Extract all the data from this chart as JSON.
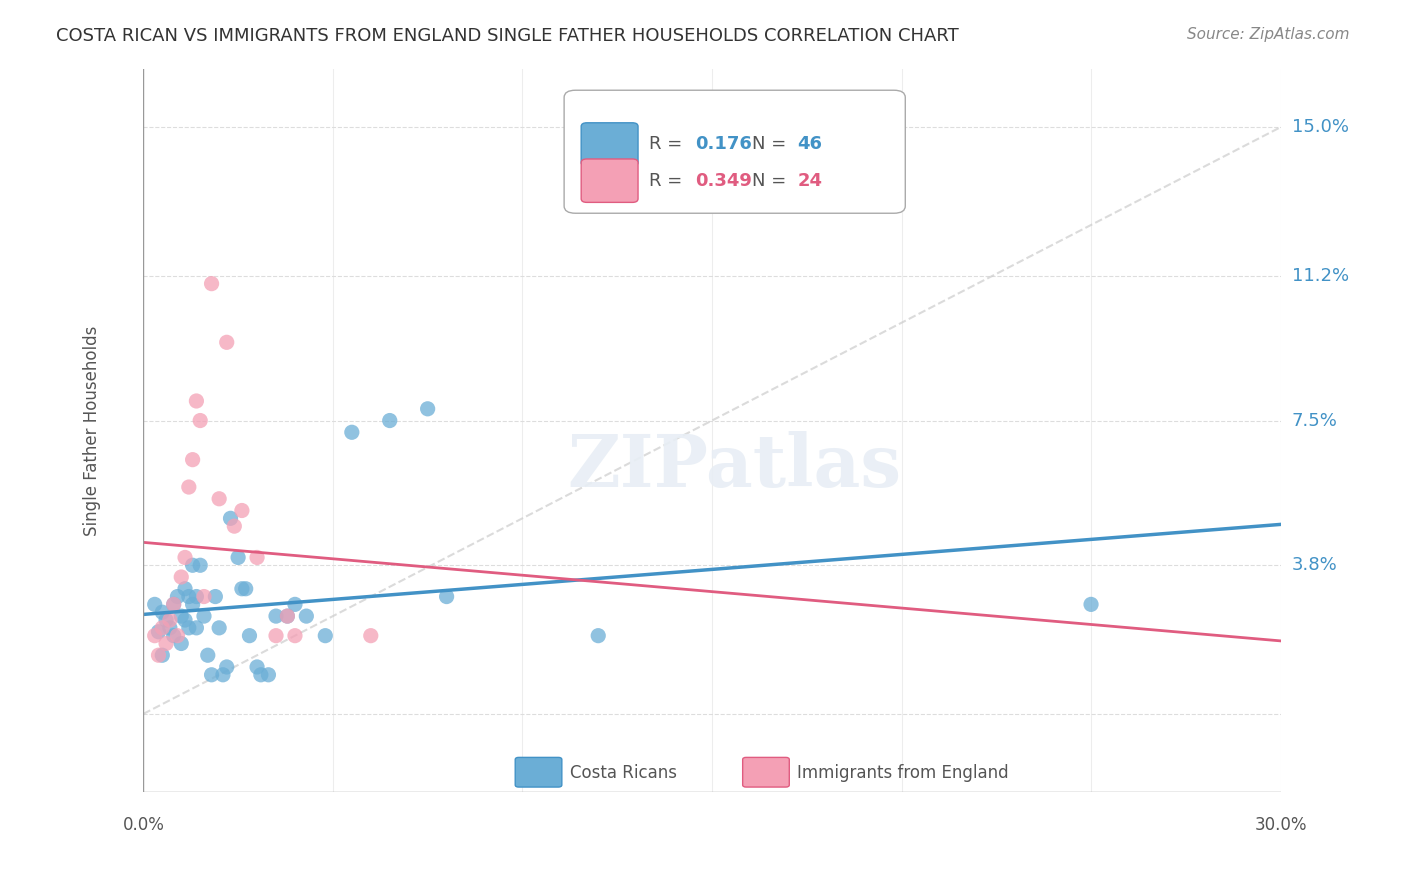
{
  "title": "COSTA RICAN VS IMMIGRANTS FROM ENGLAND SINGLE FATHER HOUSEHOLDS CORRELATION CHART",
  "source": "Source: ZipAtlas.com",
  "ylabel": "Single Father Households",
  "ytick_labels": [
    "",
    "3.8%",
    "7.5%",
    "11.2%",
    "15.0%"
  ],
  "ytick_values": [
    0.0,
    0.038,
    0.075,
    0.112,
    0.15
  ],
  "xlim": [
    0.0,
    0.3
  ],
  "ylim": [
    -0.02,
    0.165
  ],
  "watermark": "ZIPatlas",
  "legend_v1": "0.176",
  "legend_nv1": "46",
  "legend_v2": "0.349",
  "legend_nv2": "24",
  "blue_color": "#6baed6",
  "pink_color": "#f4a0b5",
  "blue_line_color": "#4292c6",
  "pink_line_color": "#e05c80",
  "blue_scatter": [
    [
      0.003,
      0.028
    ],
    [
      0.004,
      0.021
    ],
    [
      0.005,
      0.026
    ],
    [
      0.006,
      0.024
    ],
    [
      0.007,
      0.022
    ],
    [
      0.008,
      0.02
    ],
    [
      0.008,
      0.028
    ],
    [
      0.009,
      0.03
    ],
    [
      0.01,
      0.025
    ],
    [
      0.01,
      0.018
    ],
    [
      0.011,
      0.032
    ],
    [
      0.011,
      0.024
    ],
    [
      0.012,
      0.022
    ],
    [
      0.012,
      0.03
    ],
    [
      0.013,
      0.038
    ],
    [
      0.013,
      0.028
    ],
    [
      0.014,
      0.03
    ],
    [
      0.014,
      0.022
    ],
    [
      0.015,
      0.038
    ],
    [
      0.016,
      0.025
    ],
    [
      0.017,
      0.015
    ],
    [
      0.018,
      0.01
    ],
    [
      0.019,
      0.03
    ],
    [
      0.02,
      0.022
    ],
    [
      0.021,
      0.01
    ],
    [
      0.022,
      0.012
    ],
    [
      0.023,
      0.05
    ],
    [
      0.025,
      0.04
    ],
    [
      0.026,
      0.032
    ],
    [
      0.027,
      0.032
    ],
    [
      0.028,
      0.02
    ],
    [
      0.03,
      0.012
    ],
    [
      0.031,
      0.01
    ],
    [
      0.033,
      0.01
    ],
    [
      0.035,
      0.025
    ],
    [
      0.038,
      0.025
    ],
    [
      0.04,
      0.028
    ],
    [
      0.043,
      0.025
    ],
    [
      0.048,
      0.02
    ],
    [
      0.055,
      0.072
    ],
    [
      0.065,
      0.075
    ],
    [
      0.075,
      0.078
    ],
    [
      0.08,
      0.03
    ],
    [
      0.12,
      0.02
    ],
    [
      0.25,
      0.028
    ],
    [
      0.005,
      0.015
    ]
  ],
  "pink_scatter": [
    [
      0.003,
      0.02
    ],
    [
      0.005,
      0.022
    ],
    [
      0.006,
      0.018
    ],
    [
      0.007,
      0.024
    ],
    [
      0.008,
      0.028
    ],
    [
      0.009,
      0.02
    ],
    [
      0.01,
      0.035
    ],
    [
      0.011,
      0.04
    ],
    [
      0.012,
      0.058
    ],
    [
      0.013,
      0.065
    ],
    [
      0.014,
      0.08
    ],
    [
      0.015,
      0.075
    ],
    [
      0.016,
      0.03
    ],
    [
      0.018,
      0.11
    ],
    [
      0.02,
      0.055
    ],
    [
      0.022,
      0.095
    ],
    [
      0.024,
      0.048
    ],
    [
      0.026,
      0.052
    ],
    [
      0.03,
      0.04
    ],
    [
      0.035,
      0.02
    ],
    [
      0.038,
      0.025
    ],
    [
      0.04,
      0.02
    ],
    [
      0.06,
      0.02
    ],
    [
      0.004,
      0.015
    ]
  ],
  "background_color": "#ffffff",
  "grid_color": "#dddddd"
}
